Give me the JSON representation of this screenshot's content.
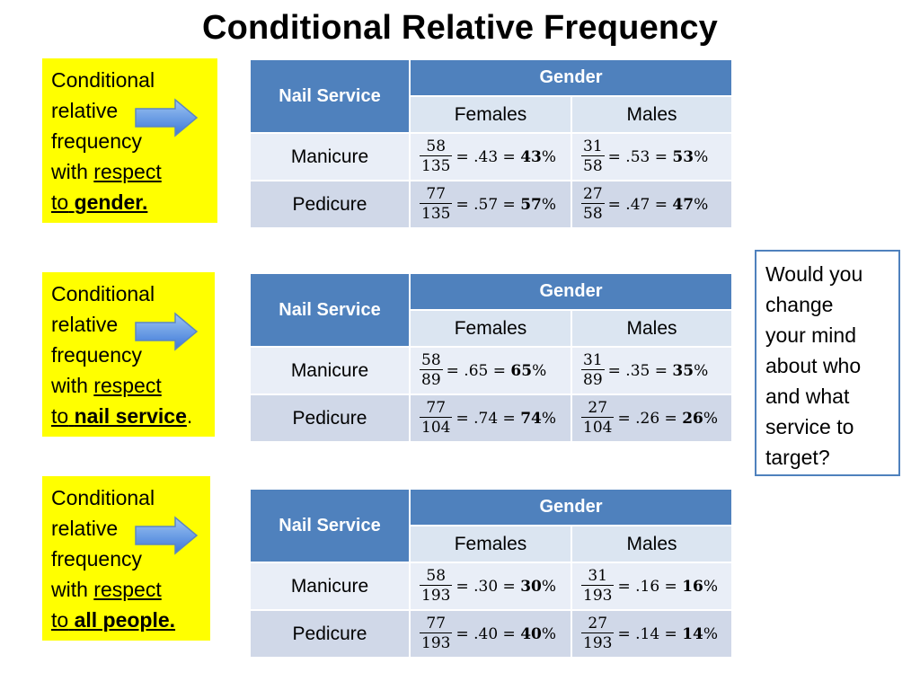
{
  "title": "Conditional Relative Frequency",
  "question": [
    "Would you",
    "change",
    "your mind",
    "about who",
    "and what",
    "service to",
    "target?"
  ],
  "sections": [
    {
      "label_lines": [
        "Conditional",
        "relative",
        "frequency"
      ],
      "with": "with",
      "respect": "respect",
      "to": "to",
      "target": "gender.",
      "target_suffix": "",
      "table": {
        "row_header": "Nail Service",
        "group_header": "Gender",
        "col_females": "Females",
        "col_males": "Males",
        "rows": [
          {
            "label": "Manicure",
            "f_num": "58",
            "f_den": "135",
            "f_eq": "= .43 = ",
            "f_pct": "43",
            "f_sign": "%",
            "m_num": "31",
            "m_den": "58",
            "m_eq": "= .53 = ",
            "m_pct": "53",
            "m_sign": "%"
          },
          {
            "label": "Pedicure",
            "f_num": "77",
            "f_den": "135",
            "f_eq": "= .57 = ",
            "f_pct": "57",
            "f_sign": "%",
            "m_num": "27",
            "m_den": "58",
            "m_eq": "= .47 = ",
            "m_pct": "47",
            "m_sign": "%"
          }
        ]
      }
    },
    {
      "label_lines": [
        "Conditional",
        "relative",
        "frequency"
      ],
      "with": "with",
      "respect": "respect",
      "to": "to",
      "target": "nail service",
      "target_suffix": ".",
      "table": {
        "row_header": "Nail Service",
        "group_header": "Gender",
        "col_females": "Females",
        "col_males": "Males",
        "rows": [
          {
            "label": "Manicure",
            "f_num": "58",
            "f_den": "89",
            "f_eq": "= .65 = ",
            "f_pct": "65",
            "f_sign": "%",
            "m_num": "31",
            "m_den": "89",
            "m_eq": "= .35 = ",
            "m_pct": "35",
            "m_sign": "%"
          },
          {
            "label": "Pedicure",
            "f_num": "77",
            "f_den": "104",
            "f_eq": "= .74 = ",
            "f_pct": "74",
            "f_sign": "%",
            "m_num": "27",
            "m_den": "104",
            "m_eq": "= .26 = ",
            "m_pct": "26",
            "m_sign": "%"
          }
        ]
      }
    },
    {
      "label_lines": [
        "Conditional",
        "relative",
        "frequency"
      ],
      "with": "with",
      "respect": "respect",
      "to": "to",
      "target": "all people.",
      "target_suffix": "",
      "table": {
        "row_header": "Nail Service",
        "group_header": "Gender",
        "col_females": "Females",
        "col_males": "Males",
        "rows": [
          {
            "label": "Manicure",
            "f_num": "58",
            "f_den": "193",
            "f_eq": "= .30 = ",
            "f_pct": "30",
            "f_sign": "%",
            "m_num": "31",
            "m_den": "193",
            "m_eq": "= .16 = ",
            "m_pct": "16",
            "m_sign": "%"
          },
          {
            "label": "Pedicure",
            "f_num": "77",
            "f_den": "193",
            "f_eq": "= .40 = ",
            "f_pct": "40",
            "f_sign": "%",
            "m_num": "27",
            "m_den": "193",
            "m_eq": "= .14 = ",
            "m_pct": "14",
            "m_sign": "%"
          }
        ]
      }
    }
  ]
}
